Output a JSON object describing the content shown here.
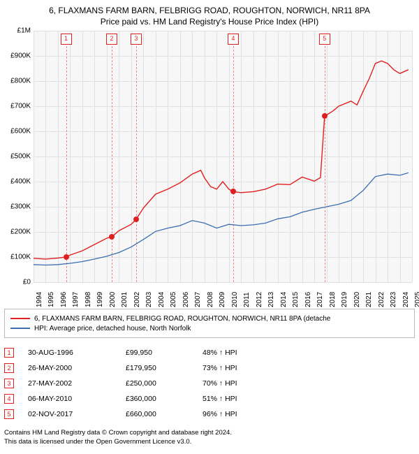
{
  "title_line1": "6, FLAXMANS FARM BARN, FELBRIGG ROAD, ROUGHTON, NORWICH, NR11 8PA",
  "title_line2": "Price paid vs. HM Land Registry's House Price Index (HPI)",
  "yaxis": {
    "ticks": [
      "£0",
      "£100K",
      "£200K",
      "£300K",
      "£400K",
      "£500K",
      "£600K",
      "£700K",
      "£800K",
      "£900K",
      "£1M"
    ],
    "min": 0,
    "max": 1000000
  },
  "xaxis": {
    "labels": [
      "1994",
      "1995",
      "1996",
      "1997",
      "1998",
      "1999",
      "2000",
      "2001",
      "2002",
      "2003",
      "2004",
      "2005",
      "2006",
      "2007",
      "2008",
      "2009",
      "2010",
      "2011",
      "2012",
      "2013",
      "2014",
      "2015",
      "2016",
      "2017",
      "2018",
      "2019",
      "2020",
      "2021",
      "2022",
      "2023",
      "2024",
      "2025"
    ],
    "min": 1994,
    "max": 2025
  },
  "colors": {
    "red": "#e02020",
    "blue": "#3c6fb0",
    "grid": "#e0e0e0",
    "plot_bg": "#f7f7f7",
    "border": "#bbb"
  },
  "legend": [
    {
      "color": "#e02020",
      "label": "6, FLAXMANS FARM BARN, FELBRIGG ROAD, ROUGHTON, NORWICH, NR11 8PA (detache"
    },
    {
      "color": "#3c6fb0",
      "label": "HPI: Average price, detached house, North Norfolk"
    }
  ],
  "transactions": [
    {
      "n": "1",
      "date": "30-AUG-1996",
      "price": "£99,950",
      "pct": "48% ↑ HPI",
      "year": 1996.66,
      "value": 99950
    },
    {
      "n": "2",
      "date": "26-MAY-2000",
      "price": "£179,950",
      "pct": "73% ↑ HPI",
      "year": 2000.4,
      "value": 179950
    },
    {
      "n": "3",
      "date": "27-MAY-2002",
      "price": "£250,000",
      "pct": "70% ↑ HPI",
      "year": 2002.4,
      "value": 250000
    },
    {
      "n": "4",
      "date": "06-MAY-2010",
      "price": "£360,000",
      "pct": "51% ↑ HPI",
      "year": 2010.35,
      "value": 360000
    },
    {
      "n": "5",
      "date": "02-NOV-2017",
      "price": "£660,000",
      "pct": "96% ↑ HPI",
      "year": 2017.84,
      "value": 660000
    }
  ],
  "red_series": [
    [
      1994,
      95000
    ],
    [
      1995,
      92000
    ],
    [
      1996,
      96000
    ],
    [
      1996.66,
      99950
    ],
    [
      1997,
      108000
    ],
    [
      1998,
      125000
    ],
    [
      1999,
      150000
    ],
    [
      2000,
      175000
    ],
    [
      2000.4,
      179950
    ],
    [
      2001,
      205000
    ],
    [
      2002,
      230000
    ],
    [
      2002.4,
      250000
    ],
    [
      2003,
      295000
    ],
    [
      2004,
      350000
    ],
    [
      2005,
      370000
    ],
    [
      2006,
      395000
    ],
    [
      2007,
      430000
    ],
    [
      2007.7,
      445000
    ],
    [
      2008,
      415000
    ],
    [
      2008.5,
      380000
    ],
    [
      2009,
      370000
    ],
    [
      2009.5,
      400000
    ],
    [
      2010,
      370000
    ],
    [
      2010.35,
      360000
    ],
    [
      2011,
      356000
    ],
    [
      2012,
      360000
    ],
    [
      2013,
      370000
    ],
    [
      2014,
      390000
    ],
    [
      2015,
      388000
    ],
    [
      2016,
      418000
    ],
    [
      2017,
      402000
    ],
    [
      2017.5,
      416000
    ],
    [
      2017.84,
      660000
    ],
    [
      2018,
      665000
    ],
    [
      2018.5,
      680000
    ],
    [
      2019,
      700000
    ],
    [
      2020,
      720000
    ],
    [
      2020.5,
      705000
    ],
    [
      2021,
      760000
    ],
    [
      2021.5,
      810000
    ],
    [
      2022,
      870000
    ],
    [
      2022.5,
      880000
    ],
    [
      2023,
      870000
    ],
    [
      2023.5,
      845000
    ],
    [
      2024,
      830000
    ],
    [
      2024.7,
      845000
    ]
  ],
  "blue_series": [
    [
      1994,
      70000
    ],
    [
      1995,
      68000
    ],
    [
      1996,
      70000
    ],
    [
      1997,
      75000
    ],
    [
      1998,
      82000
    ],
    [
      1999,
      92000
    ],
    [
      2000,
      103000
    ],
    [
      2001,
      118000
    ],
    [
      2002,
      140000
    ],
    [
      2003,
      170000
    ],
    [
      2004,
      202000
    ],
    [
      2005,
      215000
    ],
    [
      2006,
      225000
    ],
    [
      2007,
      245000
    ],
    [
      2008,
      235000
    ],
    [
      2009,
      215000
    ],
    [
      2010,
      230000
    ],
    [
      2011,
      225000
    ],
    [
      2012,
      228000
    ],
    [
      2013,
      235000
    ],
    [
      2014,
      252000
    ],
    [
      2015,
      260000
    ],
    [
      2016,
      278000
    ],
    [
      2017,
      290000
    ],
    [
      2018,
      300000
    ],
    [
      2019,
      310000
    ],
    [
      2020,
      325000
    ],
    [
      2021,
      365000
    ],
    [
      2022,
      420000
    ],
    [
      2023,
      430000
    ],
    [
      2024,
      425000
    ],
    [
      2024.7,
      435000
    ]
  ],
  "footer": {
    "line1": "Contains HM Land Registry data © Crown copyright and database right 2024.",
    "line2": "This data is licensed under the Open Government Licence v3.0."
  }
}
